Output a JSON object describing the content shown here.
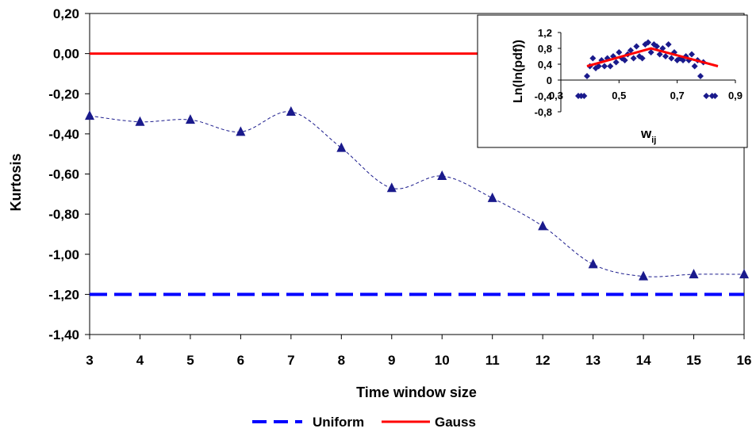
{
  "chart_data": [
    {
      "type": "line",
      "xlabel": "Time window size",
      "ylabel": "Kurtosis",
      "xlim": [
        3,
        16
      ],
      "ylim": [
        -1.4,
        0.2
      ],
      "x_ticks": [
        "3",
        "4",
        "5",
        "6",
        "7",
        "8",
        "9",
        "10",
        "11",
        "12",
        "13",
        "14",
        "15",
        "16"
      ],
      "y_ticks": [
        "0,20",
        "0,00",
        "-0,20",
        "-0,40",
        "-0,60",
        "-0,80",
        "-1,00",
        "-1,20",
        "-1,40"
      ],
      "y_tick_values": [
        0.2,
        0.0,
        -0.2,
        -0.4,
        -0.6,
        -0.8,
        -1.0,
        -1.2,
        -1.4
      ],
      "grid": false,
      "legend_position": "bottom",
      "series": [
        {
          "marker": "triangle",
          "line_style": "dashed-thin",
          "color": "#1a1a8c",
          "x": [
            3,
            4,
            5,
            6,
            7,
            8,
            9,
            10,
            11,
            12,
            13,
            14,
            15,
            16
          ],
          "values": [
            -0.31,
            -0.34,
            -0.33,
            -0.39,
            -0.29,
            -0.47,
            -0.67,
            -0.61,
            -0.72,
            -0.86,
            -1.05,
            -1.11,
            -1.1,
            -1.1
          ]
        },
        {
          "name": "Uniform",
          "line_style": "dashed-thick",
          "color": "#0000ff",
          "x": [
            3,
            16
          ],
          "values": [
            -1.2,
            -1.2
          ]
        },
        {
          "name": "Gauss",
          "line_style": "solid",
          "color": "#ff0000",
          "x": [
            3,
            16
          ],
          "values": [
            0.0,
            0.0
          ]
        }
      ]
    },
    {
      "type": "scatter",
      "xlabel": "w",
      "xlabel_subscript": "ij",
      "ylabel": "Ln(ln(pdf))",
      "xlim": [
        0.3,
        0.9
      ],
      "ylim": [
        -0.8,
        1.2
      ],
      "x_ticks": [
        "0,3",
        "0,5",
        "0,7",
        "0,9"
      ],
      "x_tick_values": [
        0.3,
        0.5,
        0.7,
        0.9
      ],
      "y_ticks": [
        "1,2",
        "0,8",
        "0,4",
        "0",
        "-0,4",
        "-0,8"
      ],
      "y_tick_values": [
        1.2,
        0.8,
        0.4,
        0.0,
        -0.4,
        -0.8
      ],
      "series": [
        {
          "marker": "diamond",
          "color": "#1a1a8c",
          "points": [
            [
              0.36,
              -0.4
            ],
            [
              0.37,
              -0.4
            ],
            [
              0.38,
              -0.4
            ],
            [
              0.39,
              0.1
            ],
            [
              0.4,
              0.35
            ],
            [
              0.41,
              0.55
            ],
            [
              0.42,
              0.3
            ],
            [
              0.43,
              0.35
            ],
            [
              0.44,
              0.5
            ],
            [
              0.45,
              0.35
            ],
            [
              0.46,
              0.55
            ],
            [
              0.47,
              0.35
            ],
            [
              0.48,
              0.6
            ],
            [
              0.49,
              0.45
            ],
            [
              0.5,
              0.7
            ],
            [
              0.51,
              0.55
            ],
            [
              0.52,
              0.5
            ],
            [
              0.53,
              0.65
            ],
            [
              0.54,
              0.75
            ],
            [
              0.55,
              0.55
            ],
            [
              0.56,
              0.85
            ],
            [
              0.57,
              0.6
            ],
            [
              0.58,
              0.55
            ],
            [
              0.59,
              0.9
            ],
            [
              0.6,
              0.95
            ],
            [
              0.61,
              0.7
            ],
            [
              0.62,
              0.9
            ],
            [
              0.63,
              0.85
            ],
            [
              0.64,
              0.65
            ],
            [
              0.65,
              0.8
            ],
            [
              0.66,
              0.6
            ],
            [
              0.67,
              0.9
            ],
            [
              0.68,
              0.55
            ],
            [
              0.69,
              0.7
            ],
            [
              0.7,
              0.5
            ],
            [
              0.71,
              0.55
            ],
            [
              0.72,
              0.5
            ],
            [
              0.73,
              0.6
            ],
            [
              0.74,
              0.5
            ],
            [
              0.75,
              0.65
            ],
            [
              0.76,
              0.35
            ],
            [
              0.77,
              0.5
            ],
            [
              0.78,
              0.1
            ],
            [
              0.79,
              0.45
            ],
            [
              0.8,
              -0.4
            ],
            [
              0.82,
              -0.4
            ],
            [
              0.83,
              -0.4
            ]
          ]
        },
        {
          "line_style": "solid",
          "color": "#ff0000",
          "points": [
            [
              0.39,
              0.35
            ],
            [
              0.61,
              0.8
            ],
            [
              0.84,
              0.35
            ]
          ]
        }
      ]
    }
  ]
}
